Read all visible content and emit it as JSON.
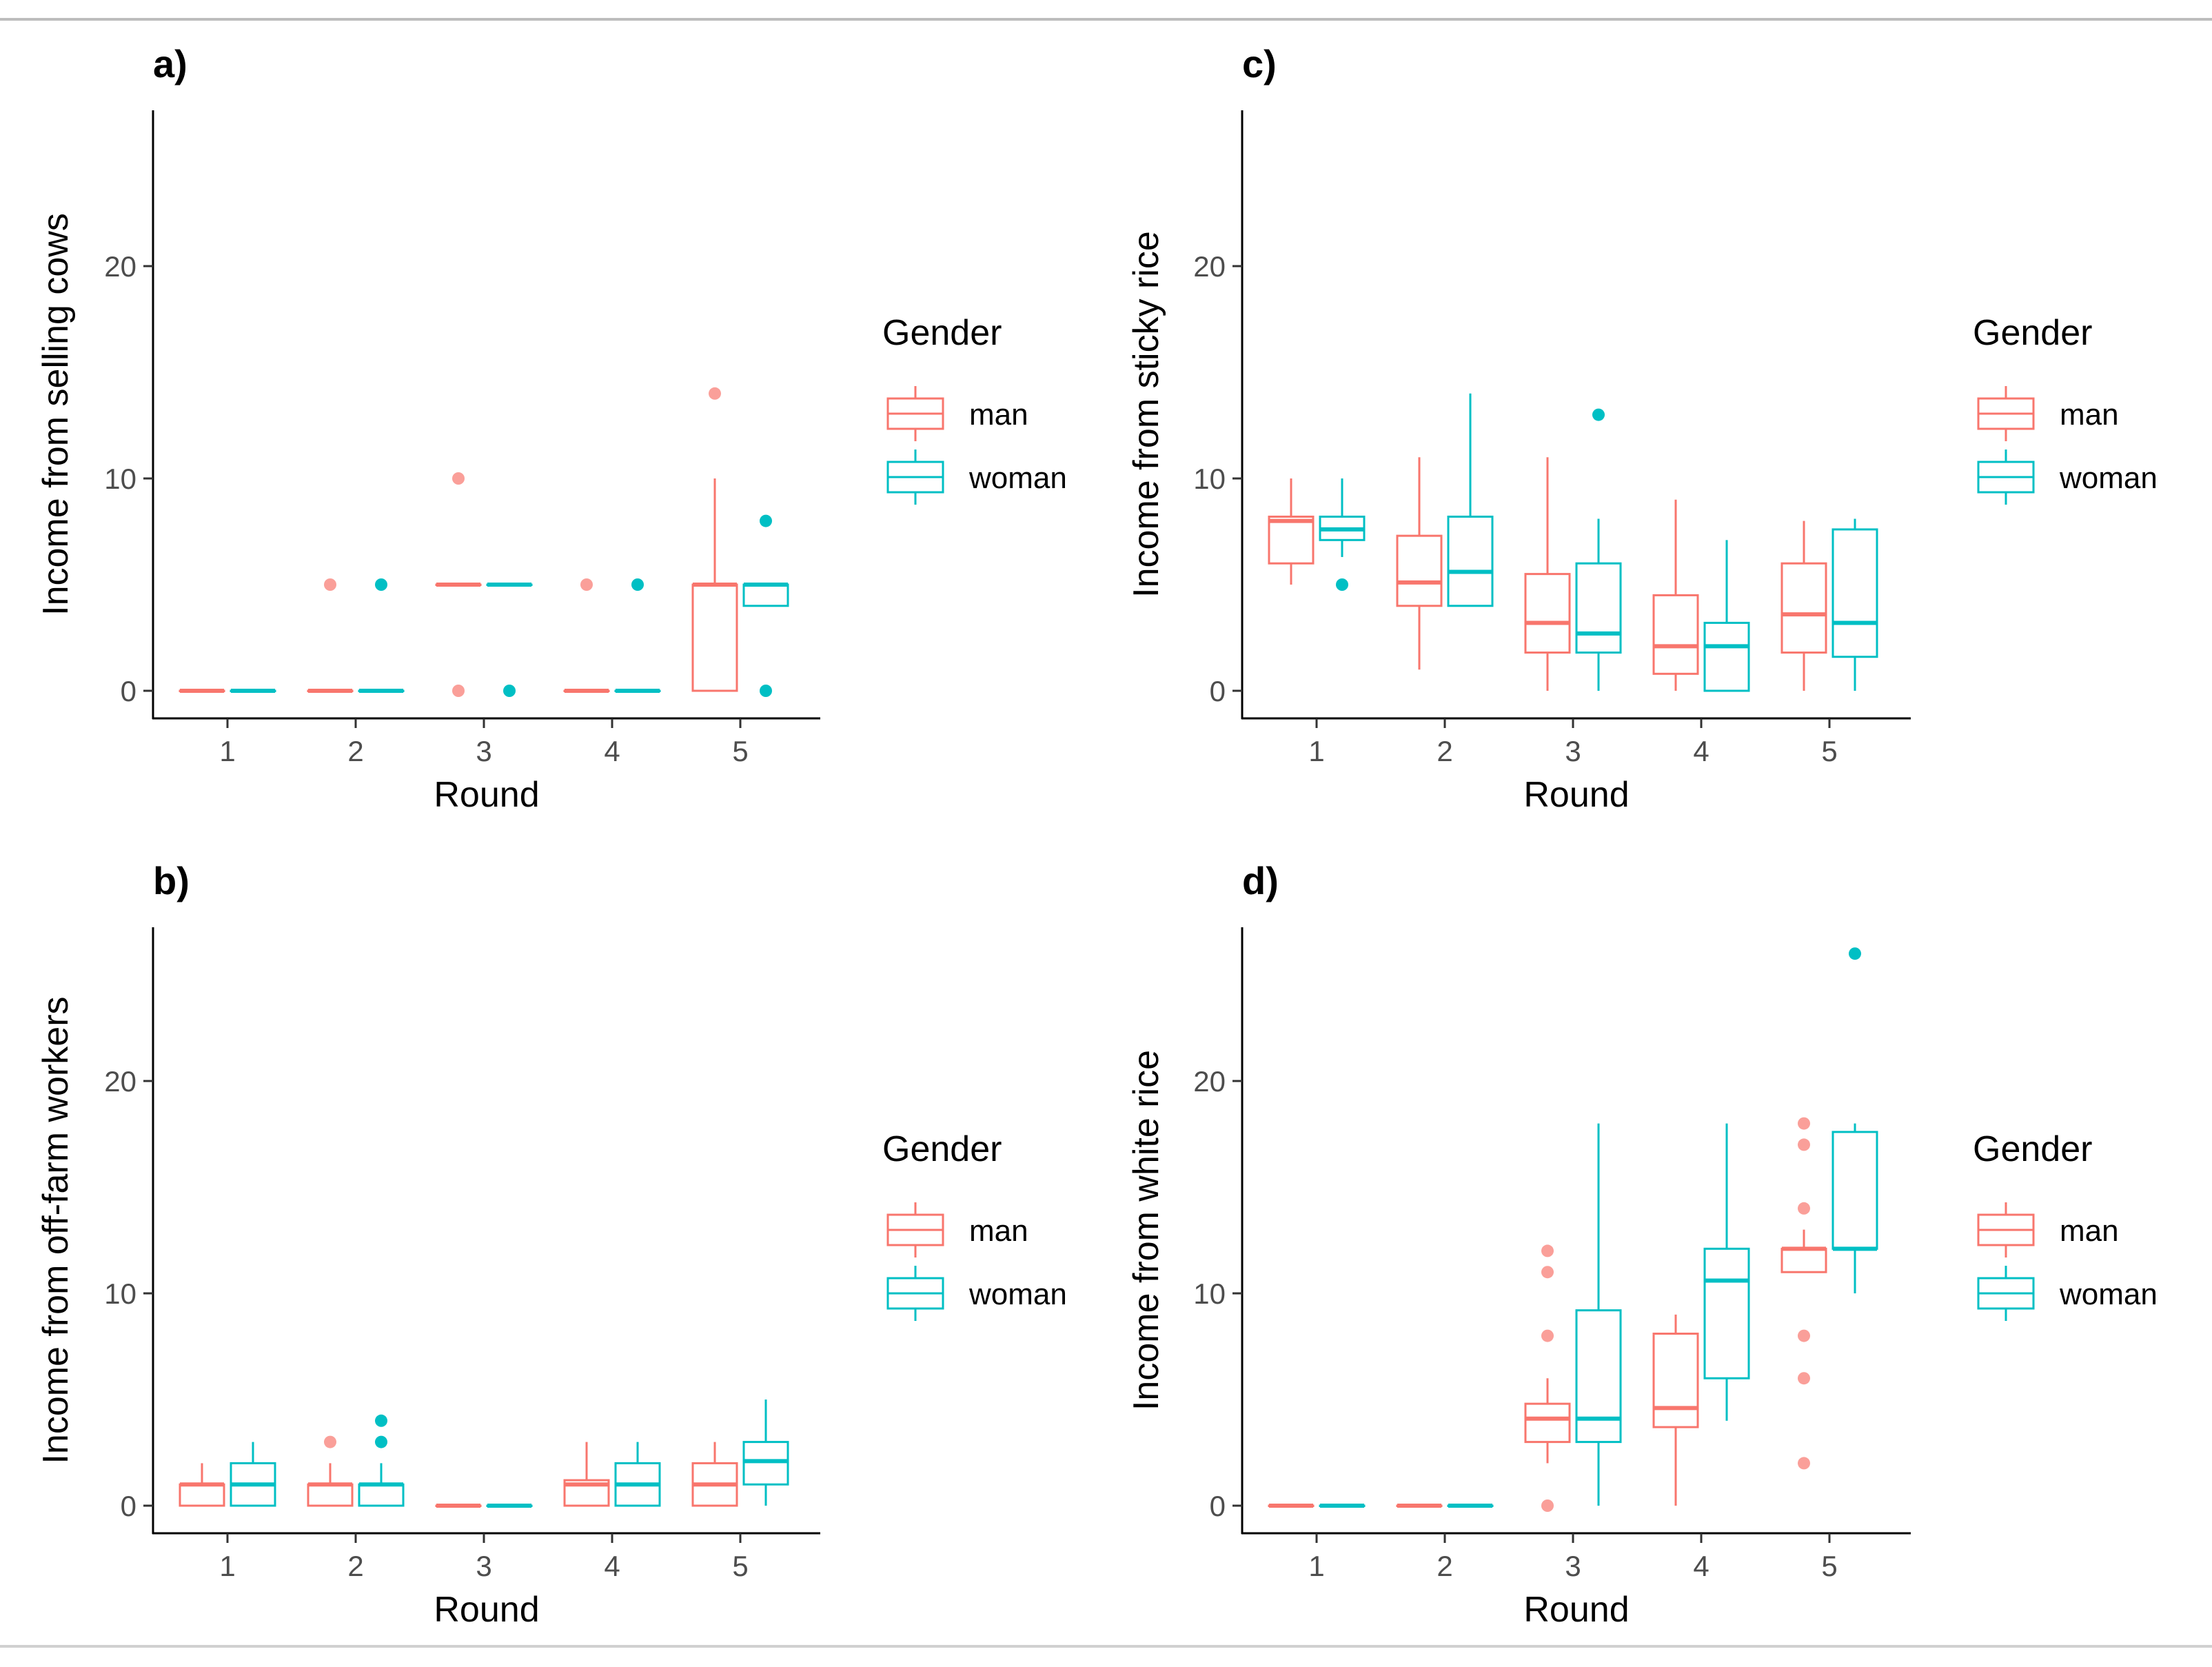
{
  "colors": {
    "man": "#F8766D",
    "woman": "#00BFC4",
    "axis": "#000000",
    "tick_label": "#4d4d4d",
    "text": "#000000"
  },
  "legend": {
    "title": "Gender",
    "items": [
      {
        "key": "man",
        "label": "man"
      },
      {
        "key": "woman",
        "label": "woman"
      }
    ]
  },
  "chart_data": [
    {
      "panel": "a)",
      "type": "boxplot",
      "xlabel": "Round",
      "ylabel": "Income from selling cows",
      "categories": [
        "1",
        "2",
        "3",
        "4",
        "5"
      ],
      "ylim": [
        -1,
        27
      ],
      "yticks": [
        0,
        10,
        20
      ],
      "series": [
        {
          "name": "man",
          "boxes": [
            {
              "q1": 0,
              "med": 0,
              "q3": 0,
              "lo": 0,
              "hi": 0,
              "out": []
            },
            {
              "q1": 0,
              "med": 0,
              "q3": 0,
              "lo": 0,
              "hi": 0,
              "out": [
                5
              ]
            },
            {
              "q1": 5,
              "med": 5,
              "q3": 5,
              "lo": 5,
              "hi": 5,
              "out": [
                10,
                0
              ]
            },
            {
              "q1": 0,
              "med": 0,
              "q3": 0,
              "lo": 0,
              "hi": 0,
              "out": [
                5
              ]
            },
            {
              "q1": 0,
              "med": 5,
              "q3": 5,
              "lo": 0,
              "hi": 10,
              "out": [
                14
              ]
            }
          ]
        },
        {
          "name": "woman",
          "boxes": [
            {
              "q1": 0,
              "med": 0,
              "q3": 0,
              "lo": 0,
              "hi": 0,
              "out": []
            },
            {
              "q1": 0,
              "med": 0,
              "q3": 0,
              "lo": 0,
              "hi": 0,
              "out": [
                5
              ]
            },
            {
              "q1": 5,
              "med": 5,
              "q3": 5,
              "lo": 5,
              "hi": 5,
              "out": [
                0
              ]
            },
            {
              "q1": 0,
              "med": 0,
              "q3": 0,
              "lo": 0,
              "hi": 0,
              "out": [
                5
              ]
            },
            {
              "q1": 4,
              "med": 5,
              "q3": 5,
              "lo": 4,
              "hi": 5,
              "out": [
                8,
                0
              ]
            }
          ]
        }
      ]
    },
    {
      "panel": "b)",
      "type": "boxplot",
      "xlabel": "Round",
      "ylabel": "Income from off-farm workers",
      "categories": [
        "1",
        "2",
        "3",
        "4",
        "5"
      ],
      "ylim": [
        -1,
        27
      ],
      "yticks": [
        0,
        10,
        20
      ],
      "series": [
        {
          "name": "man",
          "boxes": [
            {
              "q1": 0,
              "med": 1,
              "q3": 1,
              "lo": 0,
              "hi": 2,
              "out": []
            },
            {
              "q1": 0,
              "med": 1,
              "q3": 1,
              "lo": 0,
              "hi": 2,
              "out": [
                3
              ]
            },
            {
              "q1": 0,
              "med": 0,
              "q3": 0,
              "lo": 0,
              "hi": 0,
              "out": []
            },
            {
              "q1": 0,
              "med": 1,
              "q3": 1.2,
              "lo": 0,
              "hi": 3,
              "out": []
            },
            {
              "q1": 0,
              "med": 1,
              "q3": 2,
              "lo": 0,
              "hi": 3,
              "out": []
            }
          ]
        },
        {
          "name": "woman",
          "boxes": [
            {
              "q1": 0,
              "med": 1,
              "q3": 2,
              "lo": 0,
              "hi": 3,
              "out": []
            },
            {
              "q1": 0,
              "med": 1,
              "q3": 1,
              "lo": 0,
              "hi": 2,
              "out": [
                4,
                3
              ]
            },
            {
              "q1": 0,
              "med": 0,
              "q3": 0,
              "lo": 0,
              "hi": 0,
              "out": []
            },
            {
              "q1": 0,
              "med": 1,
              "q3": 2,
              "lo": 0,
              "hi": 3,
              "out": []
            },
            {
              "q1": 1,
              "med": 2.1,
              "q3": 3,
              "lo": 0,
              "hi": 5,
              "out": []
            }
          ]
        }
      ]
    },
    {
      "panel": "c)",
      "type": "boxplot",
      "xlabel": "Round",
      "ylabel": "Income from sticky rice",
      "categories": [
        "1",
        "2",
        "3",
        "4",
        "5"
      ],
      "ylim": [
        -1,
        27
      ],
      "yticks": [
        0,
        10,
        20
      ],
      "series": [
        {
          "name": "man",
          "boxes": [
            {
              "q1": 6,
              "med": 8,
              "q3": 8.2,
              "lo": 5,
              "hi": 10,
              "out": []
            },
            {
              "q1": 4,
              "med": 5.1,
              "q3": 7.3,
              "lo": 1,
              "hi": 11,
              "out": []
            },
            {
              "q1": 1.8,
              "med": 3.2,
              "q3": 5.5,
              "lo": 0,
              "hi": 11,
              "out": []
            },
            {
              "q1": 0.8,
              "med": 2.1,
              "q3": 4.5,
              "lo": 0,
              "hi": 9,
              "out": []
            },
            {
              "q1": 1.8,
              "med": 3.6,
              "q3": 6,
              "lo": 0,
              "hi": 8,
              "out": []
            }
          ]
        },
        {
          "name": "woman",
          "boxes": [
            {
              "q1": 7.1,
              "med": 7.6,
              "q3": 8.2,
              "lo": 6.3,
              "hi": 10,
              "out": [
                5
              ]
            },
            {
              "q1": 4,
              "med": 5.6,
              "q3": 8.2,
              "lo": 4,
              "hi": 14,
              "out": []
            },
            {
              "q1": 1.8,
              "med": 2.7,
              "q3": 6,
              "lo": 0,
              "hi": 8.1,
              "out": [
                13
              ]
            },
            {
              "q1": 0,
              "med": 2.1,
              "q3": 3.2,
              "lo": 0,
              "hi": 7.1,
              "out": []
            },
            {
              "q1": 1.6,
              "med": 3.2,
              "q3": 7.6,
              "lo": 0,
              "hi": 8.1,
              "out": []
            }
          ]
        }
      ]
    },
    {
      "panel": "d)",
      "type": "boxplot",
      "xlabel": "Round",
      "ylabel": "Income from white rice",
      "categories": [
        "1",
        "2",
        "3",
        "4",
        "5"
      ],
      "ylim": [
        -1,
        27
      ],
      "yticks": [
        0,
        10,
        20
      ],
      "series": [
        {
          "name": "man",
          "boxes": [
            {
              "q1": 0,
              "med": 0,
              "q3": 0,
              "lo": 0,
              "hi": 0,
              "out": []
            },
            {
              "q1": 0,
              "med": 0,
              "q3": 0,
              "lo": 0,
              "hi": 0,
              "out": []
            },
            {
              "q1": 3,
              "med": 4.1,
              "q3": 4.8,
              "lo": 2,
              "hi": 6,
              "out": [
                12,
                11,
                8,
                0
              ]
            },
            {
              "q1": 3.7,
              "med": 4.6,
              "q3": 8.1,
              "lo": 0,
              "hi": 9,
              "out": []
            },
            {
              "q1": 11,
              "med": 12.1,
              "q3": 12.1,
              "lo": 11,
              "hi": 13,
              "out": [
                18,
                17,
                14,
                8,
                6,
                2
              ]
            }
          ]
        },
        {
          "name": "woman",
          "boxes": [
            {
              "q1": 0,
              "med": 0,
              "q3": 0,
              "lo": 0,
              "hi": 0,
              "out": []
            },
            {
              "q1": 0,
              "med": 0,
              "q3": 0,
              "lo": 0,
              "hi": 0,
              "out": []
            },
            {
              "q1": 3,
              "med": 4.1,
              "q3": 9.2,
              "lo": 0,
              "hi": 18,
              "out": []
            },
            {
              "q1": 6,
              "med": 10.6,
              "q3": 12.1,
              "lo": 4,
              "hi": 18,
              "out": []
            },
            {
              "q1": 12.1,
              "med": 12.1,
              "q3": 17.6,
              "lo": 10,
              "hi": 18,
              "out": [
                26
              ]
            }
          ]
        }
      ]
    }
  ]
}
